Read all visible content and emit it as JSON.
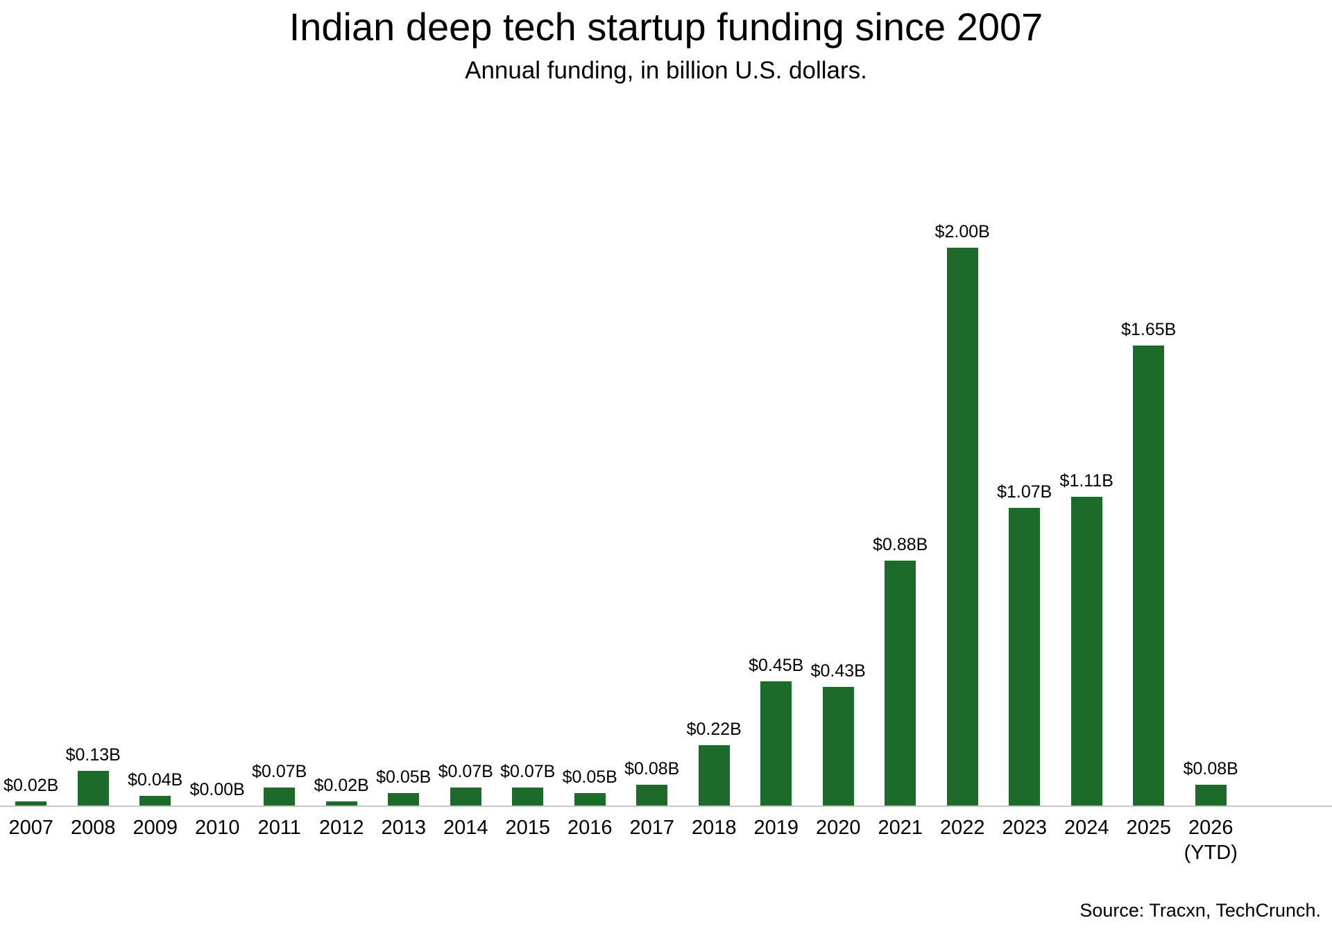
{
  "header": {
    "title": "Indian deep tech startup funding since 2007",
    "subtitle": "Annual funding, in billion U.S. dollars."
  },
  "footer": {
    "source": "Source: Tracxn, TechCrunch."
  },
  "chart_data": {
    "type": "bar",
    "title": "Indian deep tech startup funding since 2007",
    "subtitle": "Annual funding, in billion U.S. dollars.",
    "source": "Source: Tracxn, TechCrunch.",
    "categories": [
      "2007",
      "2008",
      "2009",
      "2010",
      "2011",
      "2012",
      "2013",
      "2014",
      "2015",
      "2016",
      "2017",
      "2018",
      "2019",
      "2020",
      "2021",
      "2022",
      "2023",
      "2024",
      "2025",
      "2026"
    ],
    "category_notes": [
      "",
      "",
      "",
      "",
      "",
      "",
      "",
      "",
      "",
      "",
      "",
      "",
      "",
      "",
      "",
      "",
      "",
      "",
      "",
      "(YTD)"
    ],
    "values": [
      0.02,
      0.13,
      0.04,
      0.0,
      0.07,
      0.02,
      0.05,
      0.07,
      0.07,
      0.05,
      0.08,
      0.22,
      0.45,
      0.43,
      0.88,
      2.0,
      1.07,
      1.11,
      1.65,
      0.08
    ],
    "value_labels": [
      "$0.02B",
      "$0.13B",
      "$0.04B",
      "$0.00B",
      "$0.07B",
      "$0.02B",
      "$0.05B",
      "$0.07B",
      "$0.07B",
      "$0.05B",
      "$0.08B",
      "$0.22B",
      "$0.45B",
      "$0.43B",
      "$0.88B",
      "$2.00B",
      "$1.07B",
      "$1.11B",
      "$1.65B",
      "$0.08B"
    ],
    "ylim": [
      0,
      2.0
    ],
    "grid": false,
    "legend_position": "none",
    "value_labels_position": "above-bars",
    "bar_color": "#1c6b2b",
    "axis_line_color": "#c9c9c9",
    "text_color": "#000000"
  }
}
